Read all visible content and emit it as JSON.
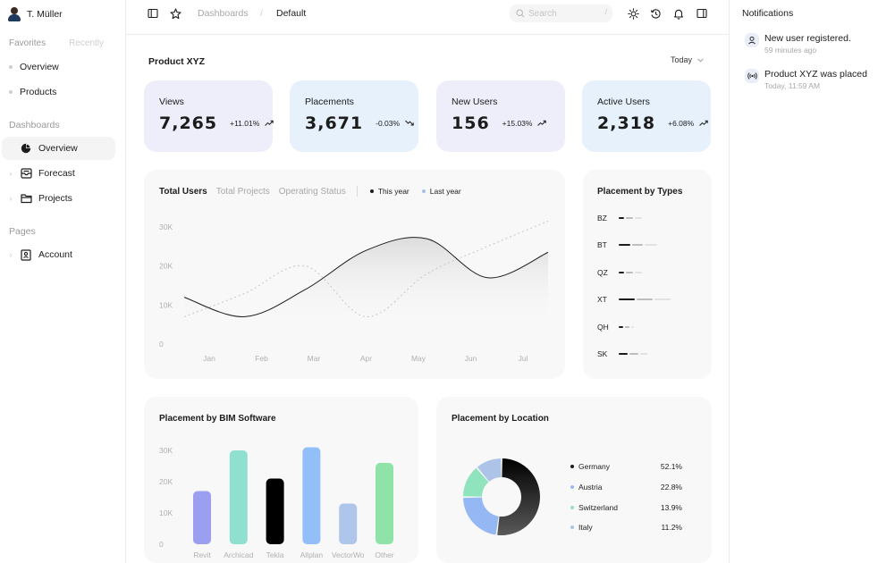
{
  "user": {
    "name": "T. Müller"
  },
  "favorites": {
    "tabs": [
      "Favorites",
      "Recently"
    ],
    "items": [
      "Overview",
      "Products"
    ]
  },
  "sidebar": {
    "dashboards_label": "Dashboards",
    "dashboards": [
      {
        "label": "Overview",
        "icon": "pie-chart-icon",
        "active": true
      },
      {
        "label": "Forecast",
        "icon": "inbox-icon",
        "active": false
      },
      {
        "label": "Projects",
        "icon": "folder-icon",
        "active": false
      }
    ],
    "pages_label": "Pages",
    "pages": [
      {
        "label": "Account",
        "icon": "id-card-icon"
      }
    ]
  },
  "topbar": {
    "breadcrumb": [
      "Dashboards",
      "/",
      "Default"
    ],
    "search_placeholder": "Search",
    "search_shortcut": "/",
    "icons": [
      "sidebar-toggle-icon",
      "star-icon",
      "sun-icon",
      "history-icon",
      "bell-icon",
      "panel-icon"
    ]
  },
  "main": {
    "title": "Product XYZ",
    "range": "Today"
  },
  "kpis": [
    {
      "label": "Views",
      "value": "7,265",
      "change": "+11.01%",
      "trend": "up",
      "bg": "#eeeefa"
    },
    {
      "label": "Placements",
      "value": "3,671",
      "change": "-0.03%",
      "trend": "down",
      "bg": "#e6f1fb"
    },
    {
      "label": "New Users",
      "value": "156",
      "change": "+15.03%",
      "trend": "up",
      "bg": "#eeeefa"
    },
    {
      "label": "Active Users",
      "value": "2,318",
      "change": "+6.08%",
      "trend": "up",
      "bg": "#e6f1fb"
    }
  ],
  "users_chart": {
    "tabs": [
      "Total Users",
      "Total Projects",
      "Operating Status"
    ],
    "legend": [
      {
        "name": "This year",
        "color": "#1c1c1c"
      },
      {
        "name": "Last year",
        "color": "#a8c0e8"
      }
    ]
  },
  "placement_types": {
    "title": "Placement by Types",
    "rows": [
      {
        "label": "BZ",
        "segments": [
          6,
          8,
          8
        ]
      },
      {
        "label": "BT",
        "segments": [
          13,
          12,
          14
        ]
      },
      {
        "label": "QZ",
        "segments": [
          6,
          8,
          8
        ]
      },
      {
        "label": "XT",
        "segments": [
          18,
          18,
          18
        ]
      },
      {
        "label": "QH",
        "segments": [
          5,
          5,
          3
        ]
      },
      {
        "label": "SK",
        "segments": [
          10,
          10,
          8
        ]
      }
    ]
  },
  "bim_chart_title": "Placement by BIM Software",
  "location": {
    "title": "Placement by Location",
    "rows": [
      {
        "name": "Germany",
        "value": "52.1%",
        "color": "#1c1c1c"
      },
      {
        "name": "Austria",
        "value": "22.8%",
        "color": "#95b8f5"
      },
      {
        "name": "Switzerland",
        "value": "13.9%",
        "color": "#8fe3bd"
      },
      {
        "name": "Italy",
        "value": "11.2%",
        "color": "#adc4e8"
      }
    ]
  },
  "notifications": {
    "title": "Notifications",
    "items": [
      {
        "text": "New user registered.",
        "time": "59 minutes ago",
        "icon": "user-icon"
      },
      {
        "text": "Product XYZ was placed",
        "time": "Today, 11:59 AM",
        "icon": "broadcast-icon"
      }
    ]
  },
  "chart_data": [
    {
      "type": "line",
      "x": [
        "Jan",
        "Feb",
        "Mar",
        "Apr",
        "May",
        "Jun",
        "Jul"
      ],
      "ylim": [
        0,
        30000
      ],
      "yticks": [
        "0",
        "10K",
        "20K",
        "30K"
      ],
      "series": [
        {
          "name": "This year",
          "values": [
            12000,
            7000,
            14000,
            24000,
            27000,
            17000,
            23500
          ]
        },
        {
          "name": "Last year",
          "values": [
            7000,
            13000,
            20000,
            7000,
            18000,
            25000,
            31500
          ]
        }
      ],
      "grid": false
    },
    {
      "type": "bar",
      "categories": [
        "Revit",
        "Archicad",
        "Tekla",
        "Allplan",
        "VectorWo",
        "Other"
      ],
      "values": [
        17000,
        30000,
        21000,
        31000,
        13000,
        26000
      ],
      "colors": [
        "#9c9ef0",
        "#8fe0cf",
        "#000000",
        "#92bff8",
        "#aec5ec",
        "#8fe3a9"
      ],
      "ylim": [
        0,
        30000
      ],
      "yticks": [
        "0",
        "10K",
        "20K",
        "30K"
      ]
    },
    {
      "type": "pie",
      "categories": [
        "Germany",
        "Austria",
        "Switzerland",
        "Italy"
      ],
      "values": [
        52.1,
        22.8,
        13.9,
        11.2
      ]
    }
  ]
}
